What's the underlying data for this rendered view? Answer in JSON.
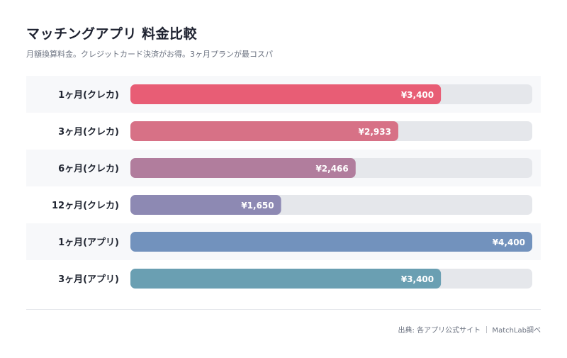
{
  "header": {
    "title": "マッチングアプリ 料金比較",
    "subtitle": "月額換算料金。クレジットカード決済がお得。3ヶ月プランが最コスパ"
  },
  "footer": {
    "source": "出典: 各アプリ公式サイト ｜ MatchLab調べ"
  },
  "colors": {
    "track": "#e5e7eb",
    "stripe": "#f7f8fa",
    "bars": [
      "#e85d75",
      "#d77186",
      "#b17d9d",
      "#8d89b3",
      "#7292bd",
      "#6a9fb2"
    ]
  },
  "chart_data": {
    "type": "bar",
    "orientation": "horizontal",
    "title": "マッチングアプリ 料金比較",
    "categories": [
      "1ヶ月(クレカ)",
      "3ヶ月(クレカ)",
      "6ヶ月(クレカ)",
      "12ヶ月(クレカ)",
      "1ヶ月(アプリ)",
      "3ヶ月(アプリ)"
    ],
    "values": [
      3400,
      2933,
      2466,
      1650,
      4400,
      3400
    ],
    "value_labels": [
      "¥3,400",
      "¥2,933",
      "¥2,466",
      "¥1,650",
      "¥4,400",
      "¥3,400"
    ],
    "xlim": [
      0,
      4400
    ],
    "grid": false,
    "legend": "none"
  }
}
